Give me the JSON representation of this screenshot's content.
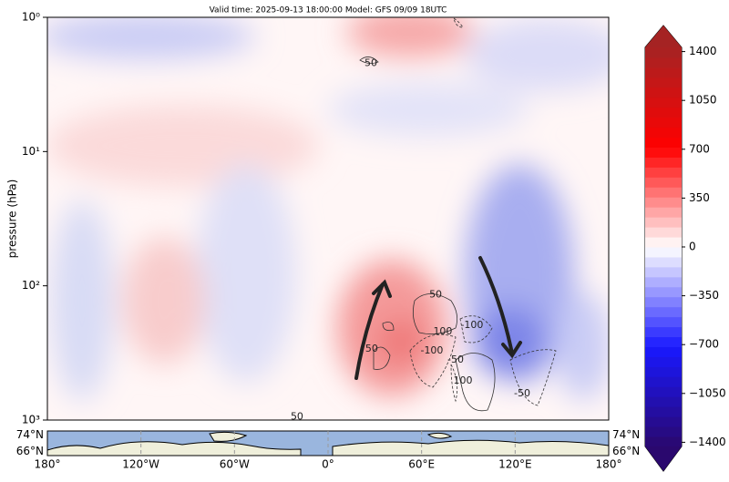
{
  "chart_data": {
    "type": "contourf",
    "title": "Valid time: 2025-09-13 18:00:00 Model: GFS 09/09 18UTC",
    "ylabel": "pressure (hPa)",
    "xlim": [
      -180,
      180
    ],
    "ylim": [
      1000,
      1
    ],
    "yscale": "log",
    "yticks": [
      {
        "value": 1,
        "label": "10⁰"
      },
      {
        "value": 10,
        "label": "10¹"
      },
      {
        "value": 100,
        "label": "10²"
      },
      {
        "value": 1000,
        "label": "10³"
      }
    ],
    "contour_labels": [
      {
        "level": 50,
        "x": 27.5,
        "y": 2.2
      },
      {
        "level": 50,
        "x": 69,
        "y": 117
      },
      {
        "level": 100,
        "x": 73.6,
        "y": 220
      },
      {
        "level": -100,
        "x": 92.3,
        "y": 197
      },
      {
        "level": -100,
        "x": 66.6,
        "y": 305
      },
      {
        "level": 50,
        "x": 28,
        "y": 295
      },
      {
        "level": -50,
        "x": 81.8,
        "y": 356
      },
      {
        "level": 100,
        "x": 86.5,
        "y": 510
      },
      {
        "level": -50,
        "x": 124.5,
        "y": 635
      },
      {
        "level": 50,
        "x": -19.9,
        "y": 950
      }
    ],
    "colorbar": {
      "lim": [
        -1430,
        1430
      ],
      "ticks": [
        1400,
        1050,
        700,
        350,
        0,
        {
          "value": -350,
          "label": "−350"
        },
        {
          "value": -700,
          "label": "−700"
        },
        {
          "value": -1050,
          "label": "−1050"
        },
        {
          "value": -1400,
          "label": "−1400"
        }
      ]
    },
    "map": {
      "xticks": [
        {
          "value": -180,
          "label": "180°"
        },
        {
          "value": -120,
          "label": "120°W"
        },
        {
          "value": -60,
          "label": "60°W"
        },
        {
          "value": 0,
          "label": "0°"
        },
        {
          "value": 60,
          "label": "60°E"
        },
        {
          "value": 120,
          "label": "120°E"
        },
        {
          "value": 180,
          "label": "180°"
        }
      ],
      "ylim": [
        64,
        76
      ],
      "yticks": [
        {
          "value": 74,
          "label": "74°N"
        },
        {
          "value": 66,
          "label": "66°N"
        }
      ]
    }
  }
}
